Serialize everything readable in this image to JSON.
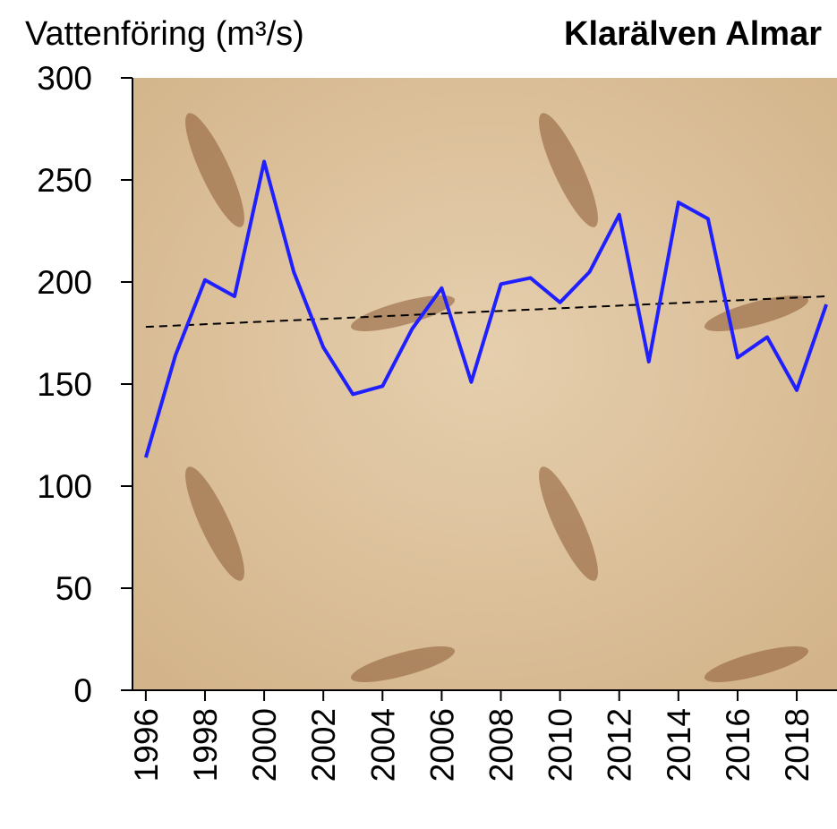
{
  "chart_data": {
    "type": "line",
    "title": "Vattenföring (m³/s)",
    "subtitle": "Klarälven Almar",
    "x": [
      1996,
      1997,
      1998,
      1999,
      2000,
      2001,
      2002,
      2003,
      2004,
      2005,
      2006,
      2007,
      2008,
      2009,
      2010,
      2011,
      2012,
      2013,
      2014,
      2015,
      2016,
      2017,
      2018,
      2019
    ],
    "series": [
      {
        "color": "#1f1fff",
        "values": [
          114,
          164,
          201,
          193,
          259,
          205,
          168,
          145,
          149,
          177,
          197,
          151,
          199,
          202,
          190,
          205,
          233,
          161,
          239,
          231,
          163,
          173,
          147,
          189
        ]
      }
    ],
    "trendline": {
      "x": [
        1996,
        2019
      ],
      "values": [
        178,
        193
      ],
      "color": "#000000",
      "dashed": true
    },
    "xlim": [
      1995.55,
      2019.36
    ],
    "xticks": [
      1996,
      1998,
      2000,
      2002,
      2004,
      2006,
      2008,
      2010,
      2012,
      2014,
      2016,
      2018
    ],
    "ylim": [
      0,
      300
    ],
    "yticks": [
      0,
      50,
      100,
      150,
      200,
      250,
      300
    ],
    "grid": false
  }
}
